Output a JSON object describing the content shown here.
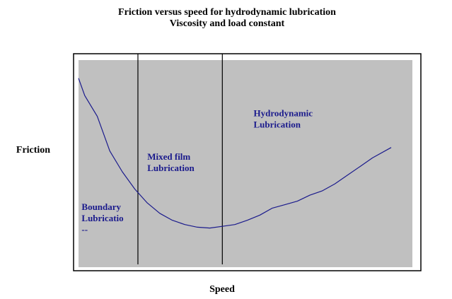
{
  "chart_data": {
    "type": "line",
    "title": "Friction versus speed for hydrodynamic lubrication",
    "subtitle": "Viscosity and load constant",
    "xlabel": "Speed",
    "ylabel": "Friction",
    "xlim": [
      0,
      100
    ],
    "ylim": [
      0,
      100
    ],
    "grid": false,
    "legend": "none",
    "colors": {
      "plot_background": "#c0c0c0",
      "curve": "#1a1a8c",
      "divider": "#000000",
      "text": "#1a1a8c"
    },
    "series": [
      {
        "x": [
          0,
          2,
          6,
          10,
          14,
          18,
          22,
          26,
          30,
          34,
          38,
          42,
          46,
          50,
          54,
          58,
          62,
          66,
          70,
          74,
          78,
          82,
          86,
          90,
          94,
          100
        ],
        "y": [
          94,
          84,
          72,
          52,
          40,
          30,
          22,
          16,
          12,
          9.5,
          8,
          7.5,
          8.5,
          9.5,
          12,
          15,
          19,
          21,
          23,
          26.5,
          29,
          33,
          38,
          43,
          48,
          54
        ]
      }
    ],
    "vlines": [
      19,
      46
    ],
    "annotations": [
      {
        "lines": [
          "Boundary",
          "Lubricatio",
          "--"
        ],
        "x": 1,
        "y": 18
      },
      {
        "lines": [
          "Mixed film",
          "Lubrication"
        ],
        "x": 22,
        "y": 47
      },
      {
        "lines": [
          "Hydrodynamic",
          "Lubrication"
        ],
        "x": 56,
        "y": 72
      }
    ]
  }
}
